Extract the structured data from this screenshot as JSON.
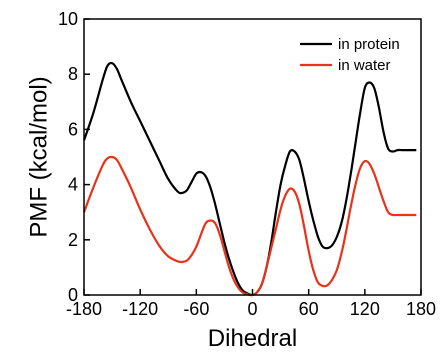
{
  "chart_data": {
    "type": "line",
    "xlabel": "Dihedral",
    "ylabel": "PMF (kcal/mol)",
    "xlim": [
      -180,
      180
    ],
    "ylim": [
      0,
      10
    ],
    "xticks": [
      -180,
      -120,
      -60,
      0,
      60,
      120,
      180
    ],
    "yticks": [
      0,
      2,
      4,
      6,
      8,
      10
    ],
    "legend_position": "top-right",
    "grid": false,
    "series": [
      {
        "name": "in protein",
        "color": "#000000",
        "x": [
          -180,
          -170,
          -160,
          -155,
          -150,
          -145,
          -140,
          -130,
          -120,
          -110,
          -100,
          -90,
          -80,
          -75,
          -70,
          -65,
          -60,
          -55,
          -50,
          -45,
          -40,
          -35,
          -30,
          -25,
          -20,
          -15,
          -10,
          -5,
          0,
          5,
          10,
          15,
          20,
          25,
          30,
          35,
          40,
          45,
          50,
          55,
          60,
          65,
          70,
          75,
          80,
          85,
          90,
          95,
          100,
          105,
          110,
          115,
          120,
          125,
          130,
          135,
          140,
          145,
          150,
          155,
          160,
          165,
          170,
          175
        ],
        "y": [
          5.6,
          6.6,
          7.8,
          8.3,
          8.4,
          8.2,
          7.8,
          7.0,
          6.3,
          5.6,
          4.9,
          4.2,
          3.75,
          3.7,
          3.8,
          4.1,
          4.4,
          4.45,
          4.3,
          3.9,
          3.3,
          2.6,
          1.9,
          1.3,
          0.8,
          0.4,
          0.15,
          0.05,
          0.0,
          0.1,
          0.4,
          1.0,
          1.9,
          3.0,
          4.0,
          4.7,
          5.2,
          5.2,
          4.9,
          4.2,
          3.4,
          2.7,
          2.1,
          1.75,
          1.7,
          1.8,
          2.1,
          2.6,
          3.4,
          4.4,
          5.5,
          6.6,
          7.5,
          7.7,
          7.5,
          6.8,
          5.9,
          5.3,
          5.2,
          5.25,
          5.25,
          5.25,
          5.25,
          5.25
        ]
      },
      {
        "name": "in water",
        "color": "#e8321a",
        "x": [
          -180,
          -170,
          -160,
          -155,
          -150,
          -145,
          -140,
          -130,
          -120,
          -110,
          -100,
          -90,
          -80,
          -75,
          -70,
          -65,
          -60,
          -55,
          -50,
          -45,
          -40,
          -35,
          -30,
          -25,
          -20,
          -15,
          -10,
          -5,
          0,
          5,
          10,
          15,
          20,
          25,
          30,
          35,
          40,
          45,
          50,
          55,
          60,
          65,
          70,
          75,
          80,
          85,
          90,
          95,
          100,
          105,
          110,
          115,
          120,
          125,
          130,
          135,
          140,
          145,
          150,
          155,
          160,
          165,
          170,
          175
        ],
        "y": [
          3.0,
          3.9,
          4.7,
          4.95,
          5.0,
          4.9,
          4.6,
          3.9,
          3.1,
          2.4,
          1.8,
          1.4,
          1.22,
          1.2,
          1.25,
          1.45,
          1.75,
          2.2,
          2.6,
          2.7,
          2.6,
          2.2,
          1.6,
          1.0,
          0.55,
          0.25,
          0.08,
          0.02,
          0.0,
          0.1,
          0.4,
          1.0,
          1.7,
          2.4,
          3.1,
          3.6,
          3.85,
          3.75,
          3.3,
          2.5,
          1.6,
          0.9,
          0.45,
          0.33,
          0.35,
          0.55,
          0.9,
          1.5,
          2.3,
          3.2,
          4.0,
          4.6,
          4.85,
          4.75,
          4.4,
          3.9,
          3.4,
          3.0,
          2.9,
          2.9,
          2.9,
          2.9,
          2.9,
          2.9
        ]
      }
    ]
  }
}
